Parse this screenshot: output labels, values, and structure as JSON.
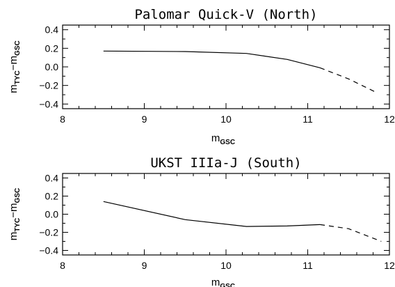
{
  "chart_data": [
    {
      "type": "line",
      "title": "Palomar Quick-V  (North)",
      "xlabel": {
        "main": "m",
        "sub": "GSC"
      },
      "ylabel": {
        "a": "m",
        "a_sub": "TYC",
        "sep": "−",
        "b": "m",
        "b_sub": "GSC"
      },
      "xlim": [
        8,
        12
      ],
      "ylim": [
        -0.45,
        0.45
      ],
      "x_major_ticks": [
        8,
        9,
        10,
        11,
        12
      ],
      "x_tick_labels": [
        "8",
        "9",
        "10",
        "11",
        "12"
      ],
      "y_major_ticks": [
        -0.4,
        -0.2,
        0.0,
        0.2,
        0.4
      ],
      "y_tick_labels": [
        "−0.4",
        "−0.2",
        "0.0",
        "0.2",
        "0.4"
      ],
      "series": [
        {
          "style": "solid",
          "x": [
            8.5,
            9.5,
            10.25,
            10.75,
            11.15
          ],
          "y": [
            0.17,
            0.165,
            0.145,
            0.08,
            -0.01
          ]
        },
        {
          "style": "dashed",
          "x": [
            11.15,
            11.5,
            11.85
          ],
          "y": [
            -0.01,
            -0.13,
            -0.28
          ]
        }
      ]
    },
    {
      "type": "line",
      "title": "UKST IIIa-J  (South)",
      "xlabel": {
        "main": "m",
        "sub": "GSC"
      },
      "ylabel": {
        "a": "m",
        "a_sub": "TYC",
        "sep": "−",
        "b": "m",
        "b_sub": "GSC"
      },
      "xlim": [
        8,
        12
      ],
      "ylim": [
        -0.45,
        0.45
      ],
      "x_major_ticks": [
        8,
        9,
        10,
        11,
        12
      ],
      "x_tick_labels": [
        "8",
        "9",
        "10",
        "11",
        "12"
      ],
      "y_major_ticks": [
        -0.4,
        -0.2,
        0.0,
        0.2,
        0.4
      ],
      "y_tick_labels": [
        "−0.4",
        "−0.2",
        "0.0",
        "0.2",
        "0.4"
      ],
      "series": [
        {
          "style": "solid",
          "x": [
            8.5,
            9.5,
            10.25,
            10.75,
            11.15
          ],
          "y": [
            0.14,
            -0.06,
            -0.135,
            -0.13,
            -0.115
          ]
        },
        {
          "style": "dashed",
          "x": [
            11.15,
            11.5,
            11.9
          ],
          "y": [
            -0.115,
            -0.16,
            -0.3
          ]
        }
      ]
    }
  ]
}
